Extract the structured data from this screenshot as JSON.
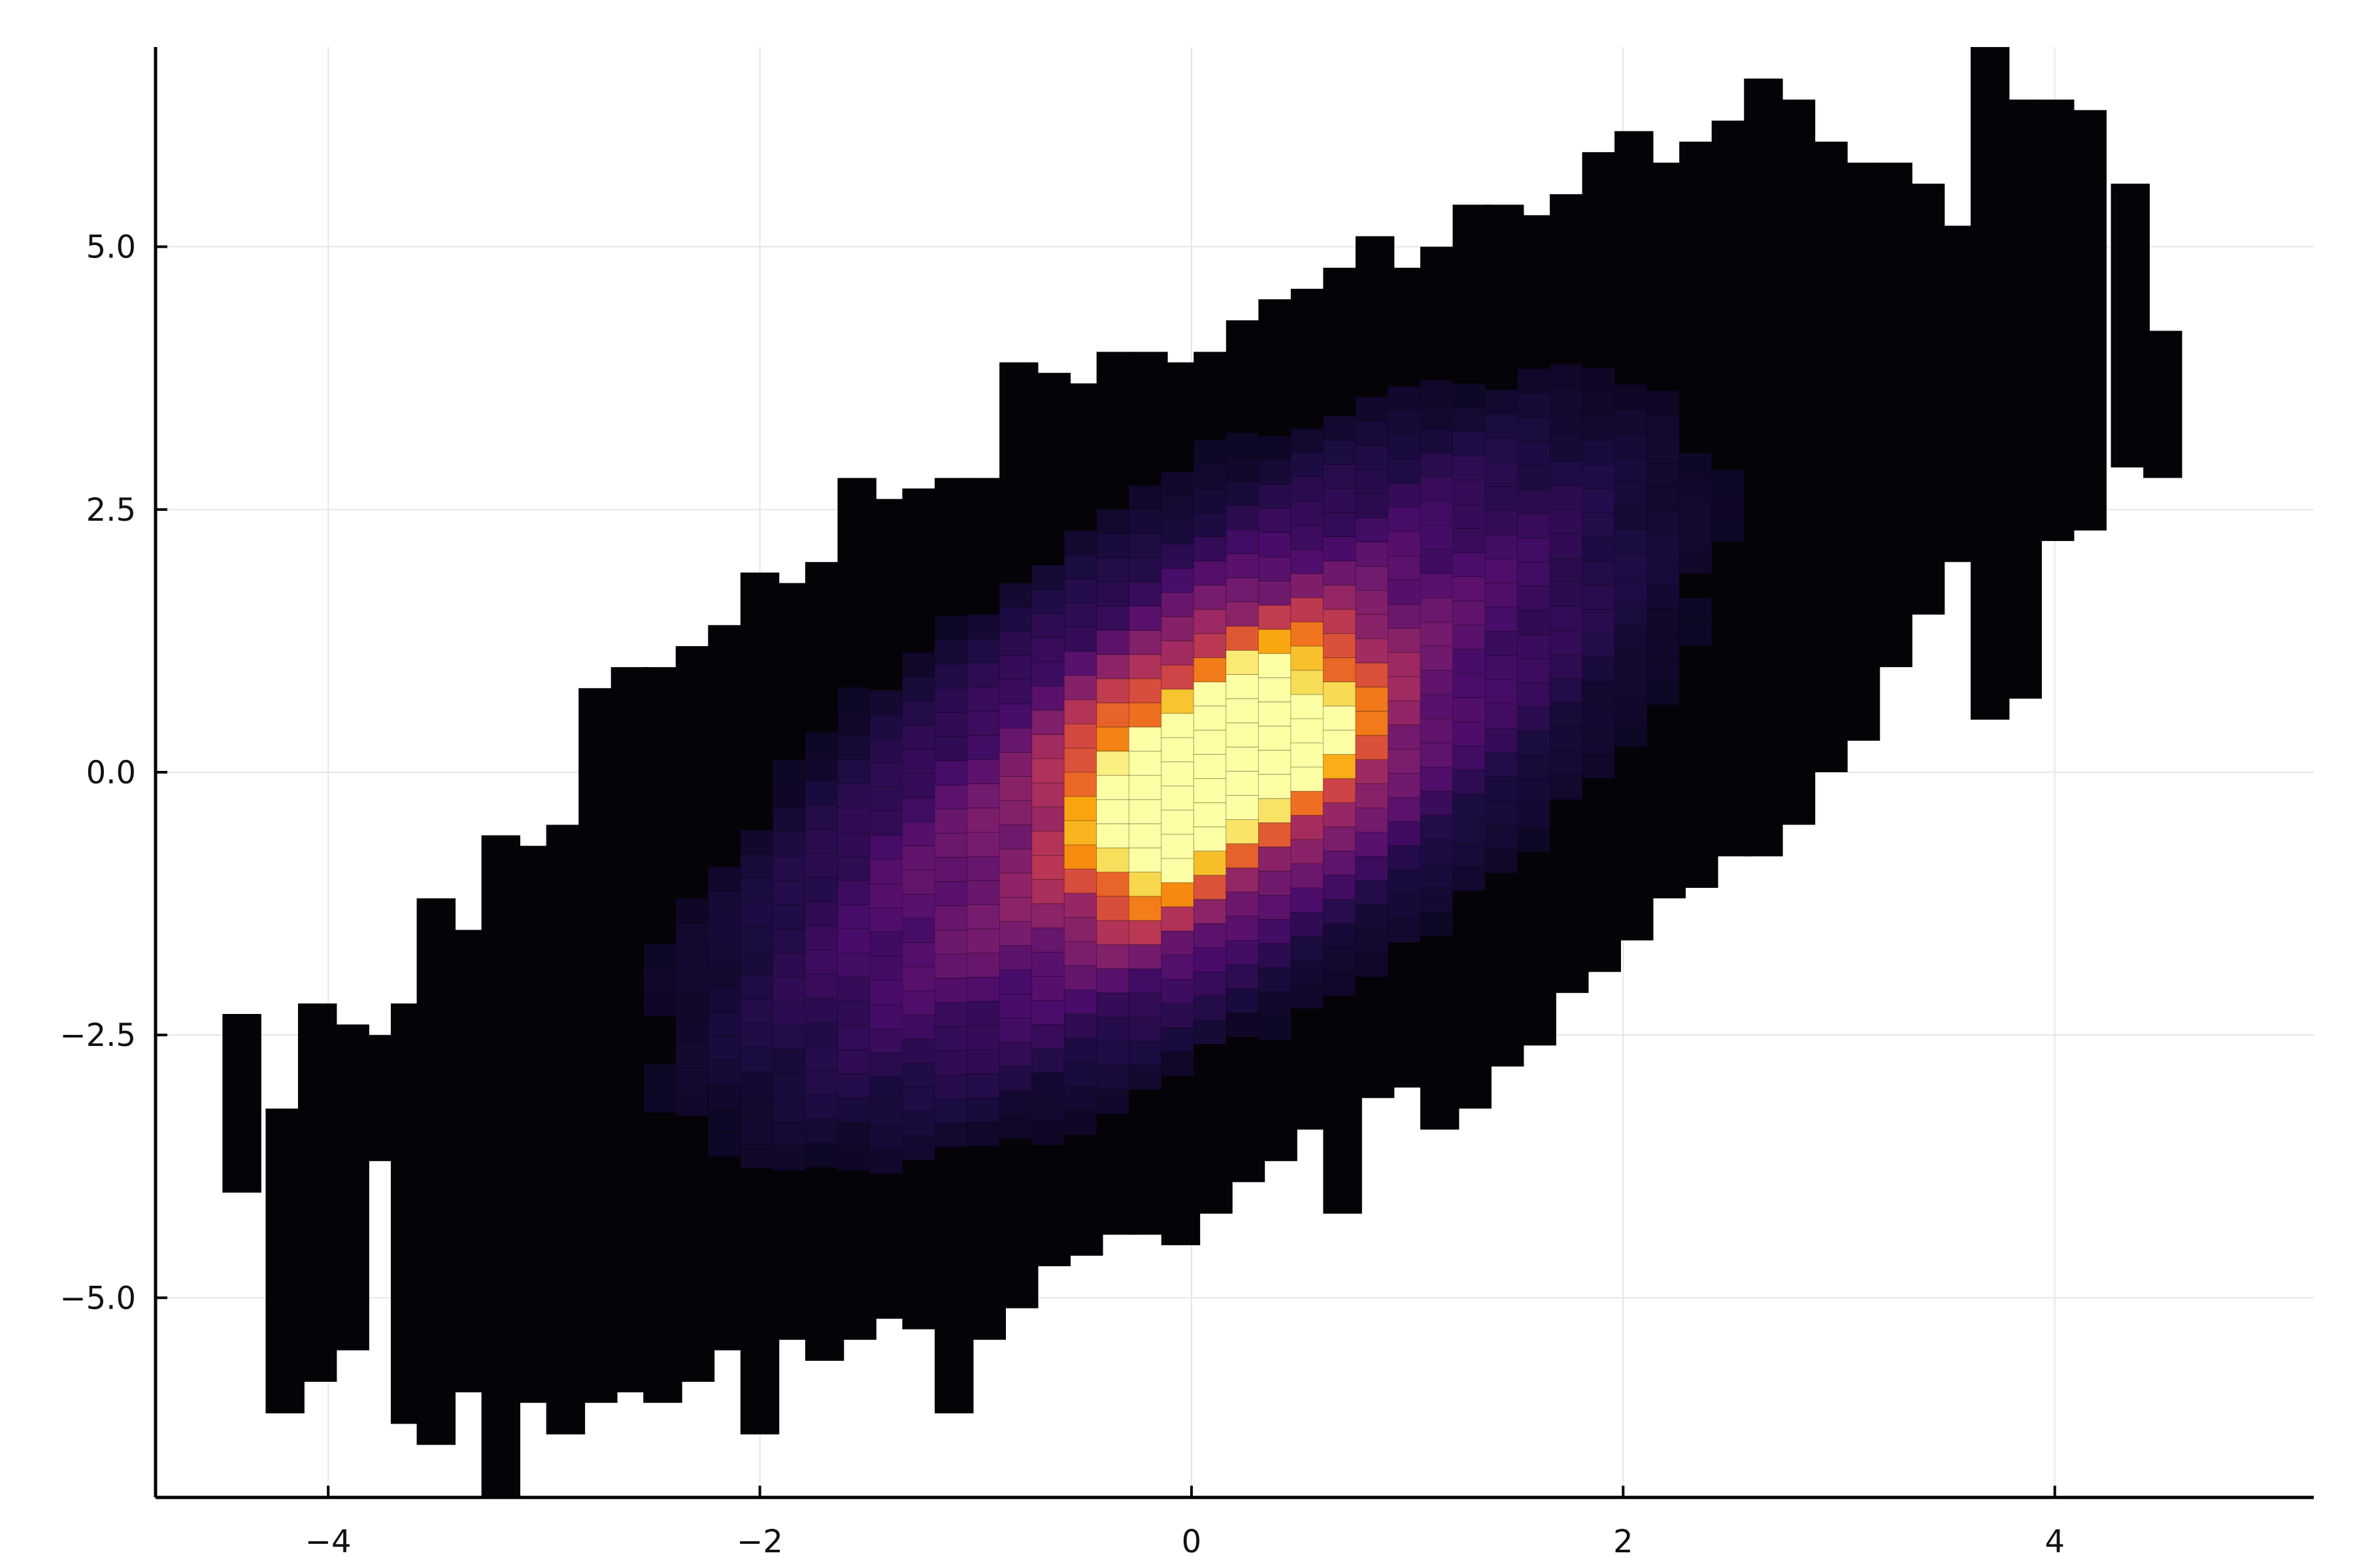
{
  "chart_data": {
    "type": "heatmap",
    "title": "",
    "xlabel": "",
    "ylabel": "",
    "xlim": [
      -4.8,
      5.2
    ],
    "ylim": [
      -6.9,
      6.9
    ],
    "xticks": [
      -4,
      -2,
      0,
      2,
      4
    ],
    "yticks": [
      -5.0,
      -2.5,
      0.0,
      2.5,
      5.0
    ],
    "xtick_labels": [
      "−4",
      "−2",
      "0",
      "2",
      "4"
    ],
    "ytick_labels": [
      "−5.0",
      "−2.5",
      "0.0",
      "2.5",
      "5.0"
    ],
    "grid": true,
    "legend": "none",
    "colormap": "inferno",
    "colors": [
      "#000004",
      "#1b0c41",
      "#4a0c6b",
      "#781c6d",
      "#a52c60",
      "#cf4446",
      "#ed6925",
      "#fb9b06",
      "#f7d13d",
      "#fcffa4"
    ],
    "x_bin_width": 0.18,
    "x_range": [
      -4.45,
      4.55
    ],
    "relation": "y ≈ 1.0·x + noise (σ ≈ 1.4)",
    "peak_bin": {
      "x": -0.2,
      "y": -0.1,
      "relative_density": 1.0
    },
    "secondary_peaks": [
      {
        "x": 0.6,
        "y": 0.5,
        "relative_density": 0.88
      },
      {
        "x": 0.2,
        "y": 0.0,
        "relative_density": 0.85
      },
      {
        "x": 0.3,
        "y": 0.6,
        "relative_density": 0.75
      },
      {
        "x": -0.2,
        "y": -0.7,
        "relative_density": 0.75
      }
    ],
    "columns": [
      {
        "x": -4.4,
        "ymin": -4.0,
        "ymax": -2.3
      },
      {
        "x": -4.2,
        "ymin": -6.1,
        "ymax": -3.2
      },
      {
        "x": -4.05,
        "ymin": -5.8,
        "ymax": -2.2
      },
      {
        "x": -3.9,
        "ymin": -5.5,
        "ymax": -2.4
      },
      {
        "x": -3.75,
        "ymin": -3.7,
        "ymax": -2.5
      },
      {
        "x": -3.62,
        "ymin": -6.2,
        "ymax": -2.2
      },
      {
        "x": -3.5,
        "ymin": -6.4,
        "ymax": -1.2
      },
      {
        "x": -3.35,
        "ymin": -5.9,
        "ymax": -1.5
      },
      {
        "x": -3.2,
        "ymin": -6.9,
        "ymax": -0.6
      },
      {
        "x": -3.05,
        "ymin": -6.0,
        "ymax": -0.7
      },
      {
        "x": -2.9,
        "ymin": -6.3,
        "ymax": -0.5
      },
      {
        "x": -2.75,
        "ymin": -6.0,
        "ymax": 0.8
      },
      {
        "x": -2.6,
        "ymin": -5.9,
        "ymax": 1.0
      },
      {
        "x": -2.45,
        "ymin": -6.0,
        "ymax": 1.0
      },
      {
        "x": -2.3,
        "ymin": -5.8,
        "ymax": 1.2
      },
      {
        "x": -2.15,
        "ymin": -5.5,
        "ymax": 1.4
      },
      {
        "x": -2.0,
        "ymin": -6.3,
        "ymax": 1.9
      },
      {
        "x": -1.85,
        "ymin": -5.4,
        "ymax": 1.8
      },
      {
        "x": -1.7,
        "ymin": -5.6,
        "ymax": 2.0
      },
      {
        "x": -1.55,
        "ymin": -5.4,
        "ymax": 2.8
      },
      {
        "x": -1.4,
        "ymin": -5.2,
        "ymax": 2.6
      },
      {
        "x": -1.25,
        "ymin": -5.3,
        "ymax": 2.7
      },
      {
        "x": -1.1,
        "ymin": -6.1,
        "ymax": 2.8
      },
      {
        "x": -0.95,
        "ymin": -5.4,
        "ymax": 2.8
      },
      {
        "x": -0.8,
        "ymin": -5.1,
        "ymax": 3.9
      },
      {
        "x": -0.65,
        "ymin": -4.7,
        "ymax": 3.8
      },
      {
        "x": -0.5,
        "ymin": -4.6,
        "ymax": 3.7
      },
      {
        "x": -0.35,
        "ymin": -4.4,
        "ymax": 4.0
      },
      {
        "x": -0.2,
        "ymin": -4.4,
        "ymax": 4.0
      },
      {
        "x": -0.05,
        "ymin": -4.5,
        "ymax": 3.9
      },
      {
        "x": 0.1,
        "ymin": -4.2,
        "ymax": 4.0
      },
      {
        "x": 0.25,
        "ymin": -3.9,
        "ymax": 4.3
      },
      {
        "x": 0.4,
        "ymin": -3.7,
        "ymax": 4.5
      },
      {
        "x": 0.55,
        "ymin": -3.4,
        "ymax": 4.6
      },
      {
        "x": 0.7,
        "ymin": -4.2,
        "ymax": 4.8
      },
      {
        "x": 0.85,
        "ymin": -3.1,
        "ymax": 5.1
      },
      {
        "x": 1.0,
        "ymin": -3.0,
        "ymax": 4.8
      },
      {
        "x": 1.15,
        "ymin": -3.4,
        "ymax": 5.0
      },
      {
        "x": 1.3,
        "ymin": -3.2,
        "ymax": 5.4
      },
      {
        "x": 1.45,
        "ymin": -2.8,
        "ymax": 5.4
      },
      {
        "x": 1.6,
        "ymin": -2.6,
        "ymax": 5.3
      },
      {
        "x": 1.75,
        "ymin": -2.1,
        "ymax": 5.5
      },
      {
        "x": 1.9,
        "ymin": -1.9,
        "ymax": 5.9
      },
      {
        "x": 2.05,
        "ymin": -1.6,
        "ymax": 6.1
      },
      {
        "x": 2.2,
        "ymin": -1.2,
        "ymax": 5.8
      },
      {
        "x": 2.35,
        "ymin": -1.1,
        "ymax": 6.0
      },
      {
        "x": 2.5,
        "ymin": -0.8,
        "ymax": 6.2
      },
      {
        "x": 2.65,
        "ymin": -0.8,
        "ymax": 6.6
      },
      {
        "x": 2.8,
        "ymin": -0.5,
        "ymax": 6.4
      },
      {
        "x": 2.95,
        "ymin": 0.0,
        "ymax": 6.0
      },
      {
        "x": 3.1,
        "ymin": 0.3,
        "ymax": 5.8
      },
      {
        "x": 3.25,
        "ymin": 1.0,
        "ymax": 5.8
      },
      {
        "x": 3.4,
        "ymin": 1.5,
        "ymax": 5.6
      },
      {
        "x": 3.55,
        "ymin": 2.0,
        "ymax": 5.2
      },
      {
        "x": 3.7,
        "ymin": 0.5,
        "ymax": 6.9
      },
      {
        "x": 3.85,
        "ymin": 0.7,
        "ymax": 6.4
      },
      {
        "x": 4.0,
        "ymin": 2.2,
        "ymax": 6.4
      },
      {
        "x": 4.15,
        "ymin": 2.3,
        "ymax": 6.3
      },
      {
        "x": 4.35,
        "ymin": 2.9,
        "ymax": 5.6
      },
      {
        "x": 4.5,
        "ymin": 2.8,
        "ymax": 4.2
      }
    ]
  }
}
